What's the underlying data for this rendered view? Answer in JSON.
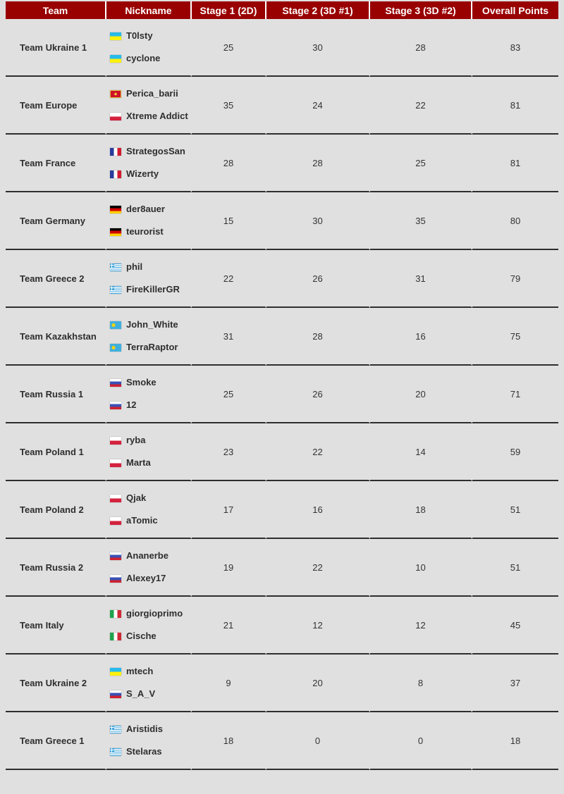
{
  "page": {
    "background_color": "#E0E0E0",
    "divider_color": "#2E2E2E"
  },
  "table": {
    "header_bg": "#990000",
    "header_text_color": "#FFFFFF",
    "columns": {
      "team": "Team",
      "nickname": "Nickname",
      "stage1": "Stage 1 (2D)",
      "stage2": "Stage 2 (3D #1)",
      "stage3": "Stage 3 (3D #2)",
      "overall": "Overall Points"
    },
    "teams": [
      {
        "team": "Team Ukraine 1",
        "players": [
          {
            "flag": "ukraine",
            "nick": "T0lsty"
          },
          {
            "flag": "ukraine",
            "nick": "cyclone"
          }
        ],
        "stage1": 25,
        "stage2": 30,
        "stage3": 28,
        "overall": 83
      },
      {
        "team": "Team Europe",
        "players": [
          {
            "flag": "montenegro",
            "nick": "Perica_barii"
          },
          {
            "flag": "poland",
            "nick": "Xtreme Addict"
          }
        ],
        "stage1": 35,
        "stage2": 24,
        "stage3": 22,
        "overall": 81
      },
      {
        "team": "Team France",
        "players": [
          {
            "flag": "france",
            "nick": "StrategosSan"
          },
          {
            "flag": "france",
            "nick": "Wizerty"
          }
        ],
        "stage1": 28,
        "stage2": 28,
        "stage3": 25,
        "overall": 81
      },
      {
        "team": "Team Germany",
        "players": [
          {
            "flag": "germany",
            "nick": "der8auer"
          },
          {
            "flag": "germany",
            "nick": "teurorist"
          }
        ],
        "stage1": 15,
        "stage2": 30,
        "stage3": 35,
        "overall": 80
      },
      {
        "team": "Team Greece 2",
        "players": [
          {
            "flag": "greece",
            "nick": "phil"
          },
          {
            "flag": "greece",
            "nick": "FireKillerGR"
          }
        ],
        "stage1": 22,
        "stage2": 26,
        "stage3": 31,
        "overall": 79
      },
      {
        "team": "Team Kazakhstan",
        "players": [
          {
            "flag": "kazakhstan",
            "nick": "John_White"
          },
          {
            "flag": "kazakhstan",
            "nick": "TerraRaptor"
          }
        ],
        "stage1": 31,
        "stage2": 28,
        "stage3": 16,
        "overall": 75
      },
      {
        "team": "Team Russia 1",
        "players": [
          {
            "flag": "russia",
            "nick": "Smoke"
          },
          {
            "flag": "russia",
            "nick": "12"
          }
        ],
        "stage1": 25,
        "stage2": 26,
        "stage3": 20,
        "overall": 71
      },
      {
        "team": "Team Poland 1",
        "players": [
          {
            "flag": "poland",
            "nick": "ryba"
          },
          {
            "flag": "poland",
            "nick": "Marta"
          }
        ],
        "stage1": 23,
        "stage2": 22,
        "stage3": 14,
        "overall": 59
      },
      {
        "team": "Team Poland 2",
        "players": [
          {
            "flag": "poland",
            "nick": "Qjak"
          },
          {
            "flag": "poland",
            "nick": "aTomic"
          }
        ],
        "stage1": 17,
        "stage2": 16,
        "stage3": 18,
        "overall": 51
      },
      {
        "team": "Team Russia 2",
        "players": [
          {
            "flag": "russia",
            "nick": "Ananerbe"
          },
          {
            "flag": "russia",
            "nick": "Alexey17"
          }
        ],
        "stage1": 19,
        "stage2": 22,
        "stage3": 10,
        "overall": 51
      },
      {
        "team": "Team Italy",
        "players": [
          {
            "flag": "italy",
            "nick": "giorgioprimo"
          },
          {
            "flag": "italy",
            "nick": "Cische"
          }
        ],
        "stage1": 21,
        "stage2": 12,
        "stage3": 12,
        "overall": 45
      },
      {
        "team": "Team Ukraine 2",
        "players": [
          {
            "flag": "ukraine",
            "nick": "mtech"
          },
          {
            "flag": "russia",
            "nick": "S_A_V"
          }
        ],
        "stage1": 9,
        "stage2": 20,
        "stage3": 8,
        "overall": 37
      },
      {
        "team": "Team Greece 1",
        "players": [
          {
            "flag": "greece",
            "nick": "Aristidis"
          },
          {
            "flag": "greece",
            "nick": "Stelaras"
          }
        ],
        "stage1": 18,
        "stage2": 0,
        "stage3": 0,
        "overall": 18
      }
    ]
  }
}
